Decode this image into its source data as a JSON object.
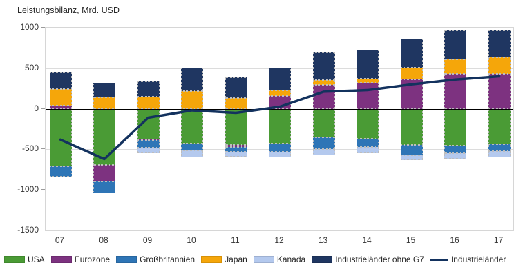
{
  "chart_data": {
    "type": "bar",
    "subtype": "stacked-bar-with-line",
    "title": "Leistungsbilanz, Mrd. USD",
    "categories": [
      "07",
      "08",
      "09",
      "10",
      "11",
      "12",
      "13",
      "14",
      "15",
      "16",
      "17"
    ],
    "series": [
      {
        "name": "USA",
        "type": "bar",
        "color": "#4a9b35",
        "values": [
          -710,
          -690,
          -375,
          -430,
          -445,
          -425,
          -350,
          -365,
          -445,
          -450,
          -440
        ]
      },
      {
        "name": "Eurozone",
        "type": "bar",
        "color": "#7d3280",
        "values": [
          35,
          -210,
          -15,
          0,
          -25,
          160,
          295,
          320,
          360,
          430,
          430
        ]
      },
      {
        "name": "Großbritannien",
        "type": "bar",
        "color": "#2e75b6",
        "values": [
          -130,
          -145,
          -90,
          -85,
          -60,
          -105,
          -145,
          -110,
          -130,
          -100,
          -85
        ]
      },
      {
        "name": "Japan",
        "type": "bar",
        "color": "#f5a60a",
        "values": [
          205,
          145,
          150,
          220,
          130,
          65,
          55,
          50,
          150,
          180,
          205
        ]
      },
      {
        "name": "Kanada",
        "type": "bar",
        "color": "#b4c9ee",
        "values": [
          0,
          0,
          -65,
          -80,
          -60,
          -70,
          -80,
          -70,
          -60,
          -65,
          -70
        ]
      },
      {
        "name": "Industrieländer ohne G7",
        "type": "bar",
        "color": "#1f3661",
        "values": [
          205,
          175,
          190,
          285,
          260,
          285,
          340,
          355,
          350,
          355,
          330
        ]
      },
      {
        "name": "Industrieländer",
        "type": "line",
        "color": "#13325e",
        "values": [
          -380,
          -620,
          -110,
          -20,
          -50,
          25,
          210,
          230,
          300,
          360,
          400
        ]
      }
    ],
    "ylim": [
      -1500,
      1000
    ],
    "yticks": [
      1000,
      500,
      0,
      -500,
      -1000,
      -1500
    ],
    "grid": "horizontal",
    "legend_position": "bottom",
    "zero_line_color": "#000000"
  }
}
